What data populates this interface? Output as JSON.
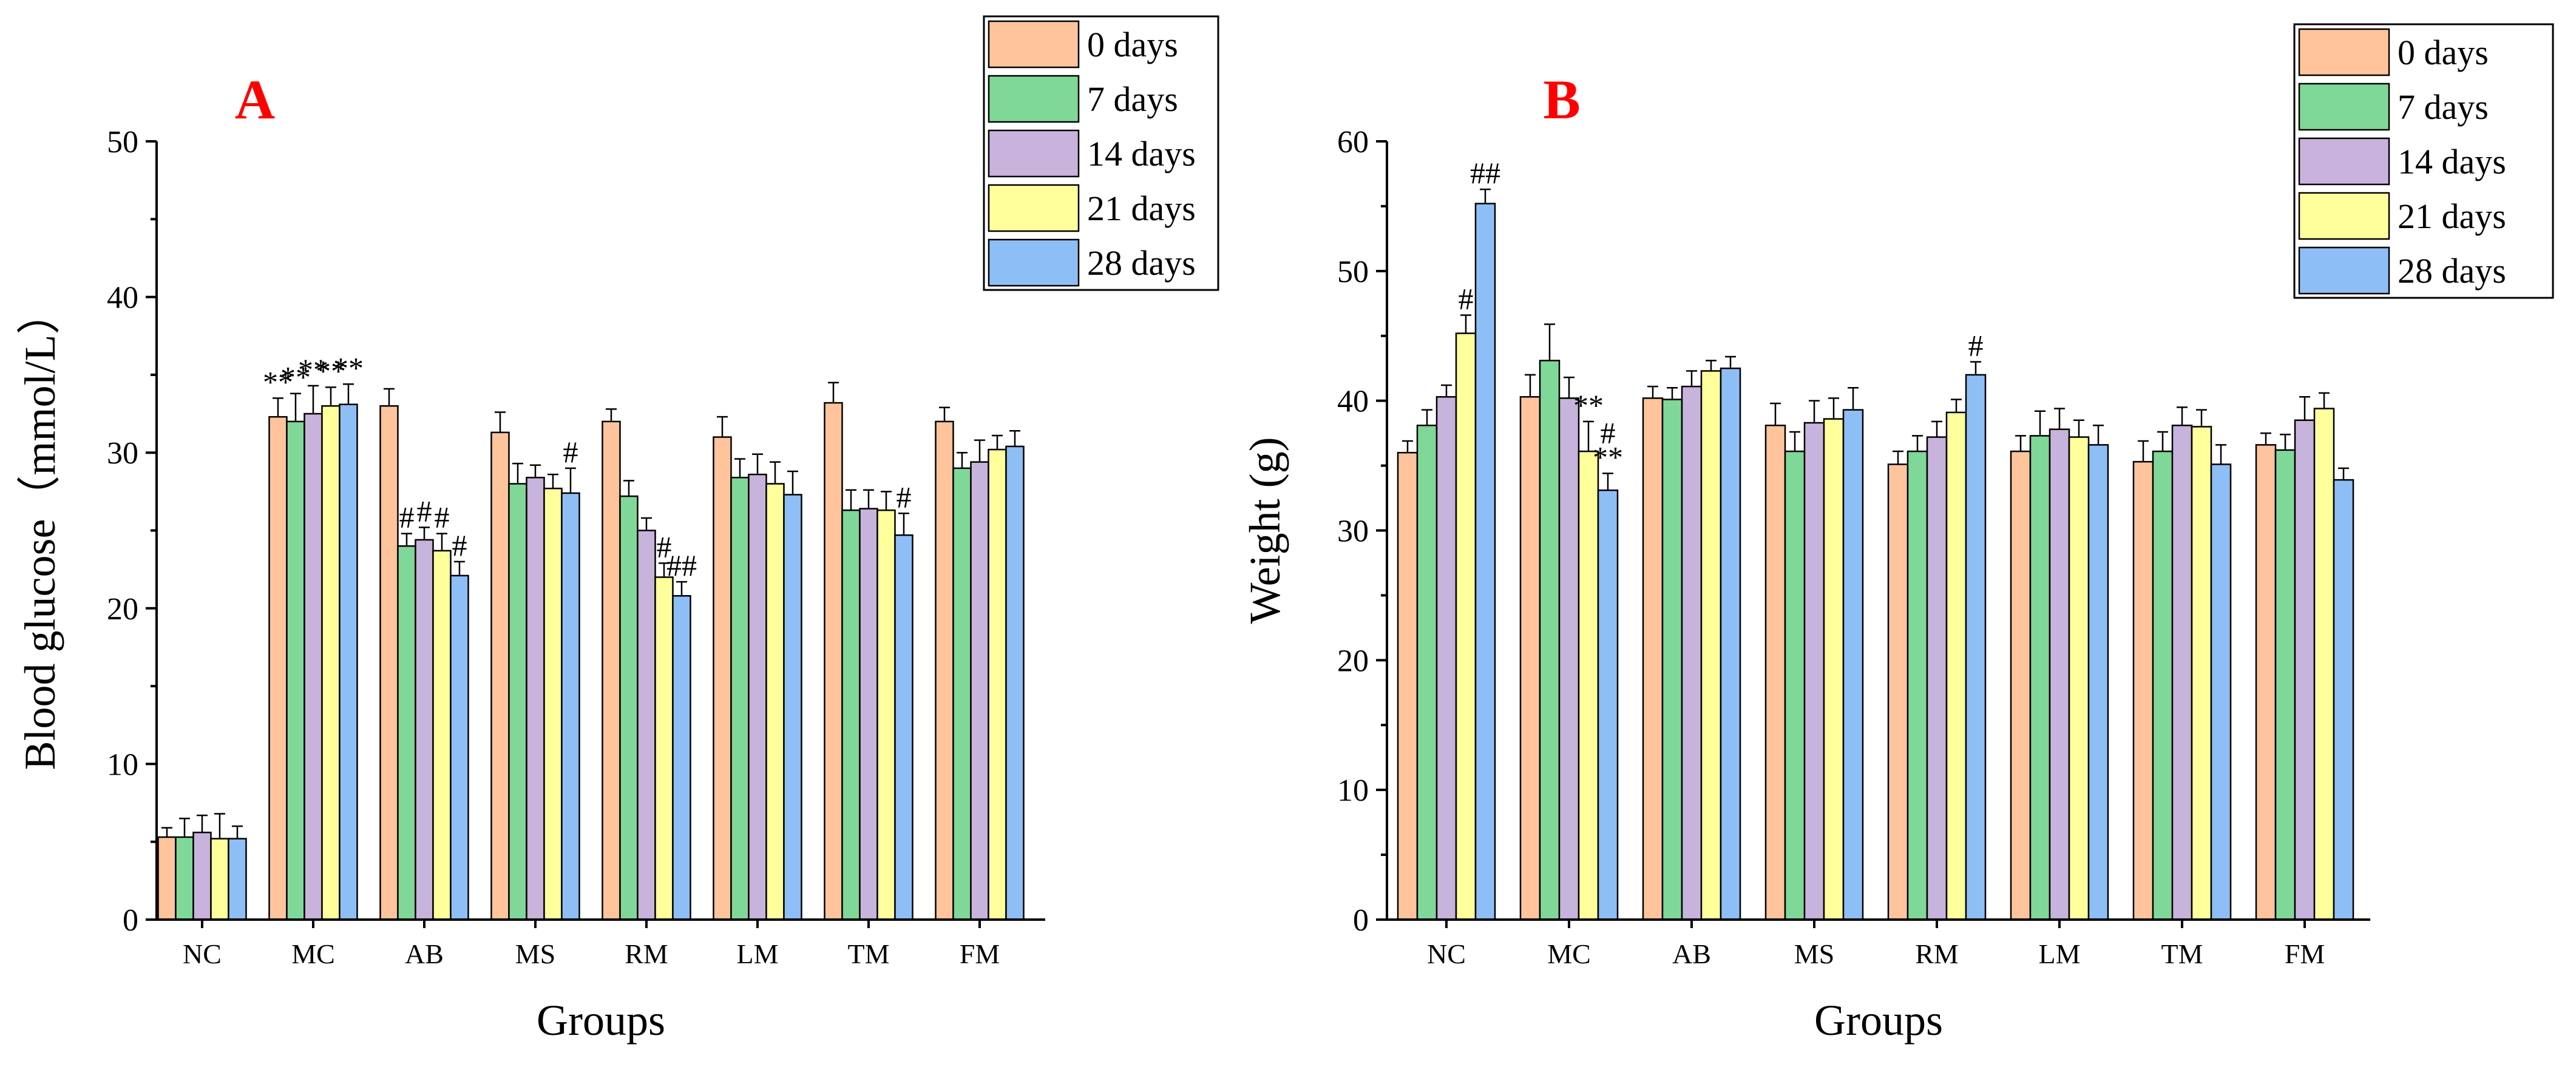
{
  "colors": {
    "series": [
      "#FFC49B",
      "#7FD898",
      "#C7B3DC",
      "#FFFF9C",
      "#8EBEF6"
    ],
    "panel_letter": "#FF0000",
    "axis": "#000000"
  },
  "chart_data": [
    {
      "type": "bar",
      "panel_label": "A",
      "xlabel": "Groups",
      "ylabel": "Blood glucose（mmol/L）",
      "ylim": [
        0,
        50
      ],
      "yticks": [
        0,
        10,
        20,
        30,
        40,
        50
      ],
      "ytick_labels": [
        "0",
        "10",
        "20",
        "30",
        "40",
        "50"
      ],
      "categories": [
        "NC",
        "MC",
        "AB",
        "MS",
        "RM",
        "LM",
        "TM",
        "FM"
      ],
      "legend": {
        "position": "top-right",
        "entries": [
          "0 days",
          "7 days",
          "14 days",
          "21 days",
          "28 days"
        ]
      },
      "series": [
        {
          "name": "0 days",
          "values": [
            5.3,
            32.3,
            33.0,
            31.3,
            32.0,
            31.0,
            33.2,
            32.0
          ],
          "errors": [
            0.6,
            1.2,
            1.1,
            1.3,
            0.8,
            1.3,
            1.3,
            0.9
          ]
        },
        {
          "name": "7 days",
          "values": [
            5.3,
            32.0,
            24.0,
            28.0,
            27.2,
            28.4,
            26.3,
            29.0
          ],
          "errors": [
            1.2,
            1.8,
            0.8,
            1.3,
            1.0,
            1.2,
            1.3,
            1.0
          ]
        },
        {
          "name": "14 days",
          "values": [
            5.6,
            32.5,
            24.4,
            28.4,
            25.0,
            28.6,
            26.4,
            29.4
          ],
          "errors": [
            1.1,
            1.8,
            0.8,
            0.8,
            0.8,
            1.3,
            1.2,
            1.4
          ]
        },
        {
          "name": "21 days",
          "values": [
            5.2,
            33.0,
            23.7,
            27.7,
            22.0,
            28.0,
            26.3,
            30.2
          ],
          "errors": [
            1.6,
            1.2,
            1.1,
            0.9,
            0.9,
            1.4,
            1.2,
            0.9
          ]
        },
        {
          "name": "28 days",
          "values": [
            5.2,
            33.1,
            22.1,
            27.4,
            20.8,
            27.3,
            24.7,
            30.4
          ],
          "errors": [
            0.8,
            1.3,
            0.9,
            1.6,
            0.9,
            1.5,
            1.4,
            1.0
          ]
        }
      ],
      "annotations": [
        {
          "category": 1,
          "series": 0,
          "text": "**"
        },
        {
          "category": 1,
          "series": 1,
          "text": "**"
        },
        {
          "category": 1,
          "series": 2,
          "text": "**"
        },
        {
          "category": 1,
          "series": 3,
          "text": "**"
        },
        {
          "category": 1,
          "series": 4,
          "text": "**"
        },
        {
          "category": 2,
          "series": 1,
          "text": "#"
        },
        {
          "category": 2,
          "series": 2,
          "text": "#"
        },
        {
          "category": 2,
          "series": 3,
          "text": "#"
        },
        {
          "category": 2,
          "series": 4,
          "text": "#"
        },
        {
          "category": 3,
          "series": 4,
          "text": "#"
        },
        {
          "category": 4,
          "series": 3,
          "text": "#"
        },
        {
          "category": 4,
          "series": 4,
          "text": "##"
        },
        {
          "category": 6,
          "series": 4,
          "text": "#"
        }
      ]
    },
    {
      "type": "bar",
      "panel_label": "B",
      "xlabel": "Groups",
      "ylabel": "Weight (g)",
      "ylim": [
        0,
        60
      ],
      "yticks": [
        0,
        10,
        20,
        30,
        40,
        50,
        60
      ],
      "ytick_labels": [
        "0",
        "10",
        "20",
        "30",
        "40",
        "50",
        "60"
      ],
      "categories": [
        "NC",
        "MC",
        "AB",
        "MS",
        "RM",
        "LM",
        "TM",
        "FM"
      ],
      "legend": {
        "position": "top-right",
        "entries": [
          "0 days",
          "7 days",
          "14 days",
          "21 days",
          "28 days"
        ]
      },
      "series": [
        {
          "name": "0 days",
          "values": [
            36.0,
            40.3,
            40.2,
            38.1,
            35.1,
            36.1,
            35.3,
            36.6
          ],
          "errors": [
            0.9,
            1.7,
            0.9,
            1.7,
            1.0,
            1.2,
            1.6,
            0.9
          ]
        },
        {
          "name": "7 days",
          "values": [
            38.1,
            43.1,
            40.1,
            36.1,
            36.1,
            37.3,
            36.1,
            36.2
          ],
          "errors": [
            1.2,
            2.8,
            0.9,
            1.5,
            1.2,
            1.9,
            1.5,
            1.2
          ]
        },
        {
          "name": "14 days",
          "values": [
            40.3,
            40.2,
            41.1,
            38.3,
            37.2,
            37.8,
            38.1,
            38.5
          ],
          "errors": [
            0.9,
            1.6,
            1.2,
            1.7,
            1.2,
            1.6,
            1.4,
            1.8
          ]
        },
        {
          "name": "21 days",
          "values": [
            45.2,
            36.1,
            42.3,
            38.6,
            39.1,
            37.2,
            38.0,
            39.4
          ],
          "errors": [
            1.4,
            2.3,
            0.8,
            1.6,
            1.0,
            1.3,
            1.3,
            1.2
          ]
        },
        {
          "name": "28 days",
          "values": [
            55.2,
            33.1,
            42.5,
            39.3,
            42.0,
            36.6,
            35.1,
            33.9
          ],
          "errors": [
            1.1,
            1.3,
            0.9,
            1.7,
            1.0,
            1.5,
            1.5,
            0.9
          ]
        }
      ],
      "annotations": [
        {
          "category": 0,
          "series": 3,
          "text": "#"
        },
        {
          "category": 0,
          "series": 4,
          "text": "##"
        },
        {
          "category": 1,
          "series": 3,
          "text": "**"
        },
        {
          "category": 1,
          "series": 4,
          "text": "**"
        },
        {
          "category": 1,
          "series": 4,
          "text": "#"
        },
        {
          "category": 4,
          "series": 4,
          "text": "#"
        }
      ]
    }
  ]
}
